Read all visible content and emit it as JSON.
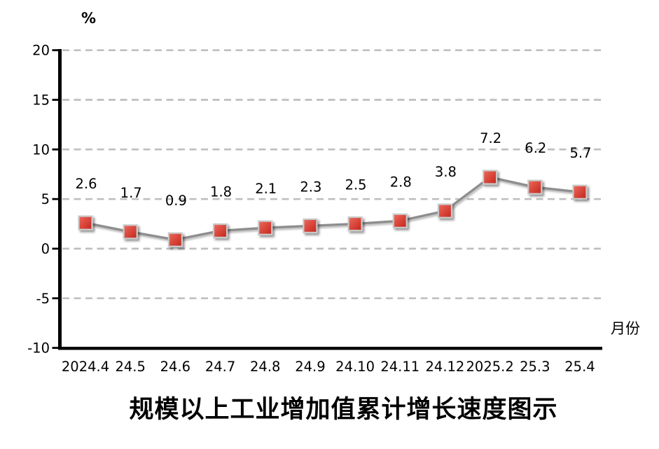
{
  "chart_data": {
    "type": "line",
    "title": "规模以上工业增加值累计增长速度图示",
    "ylabel": "%",
    "xlabel": "月份",
    "categories": [
      "2024.4",
      "24.5",
      "24.6",
      "24.7",
      "24.8",
      "24.9",
      "24.10",
      "24.11",
      "24.12",
      "2025.2",
      "25.3",
      "25.4"
    ],
    "values": [
      2.6,
      1.7,
      0.9,
      1.8,
      2.1,
      2.3,
      2.5,
      2.8,
      3.8,
      7.2,
      6.2,
      5.7
    ],
    "ylim": [
      -10,
      20
    ],
    "yticks": [
      20,
      15,
      10,
      5,
      0,
      -5,
      -10
    ],
    "grid": "horizontal-dashed",
    "legend": "none",
    "marker_shape": "square",
    "colors": {
      "marker_fill_light": "#EE6A5E",
      "marker_fill_dark": "#C4241A",
      "marker_border": "#C9C9C9",
      "line": "#8E8E8E",
      "grid": "#BFBFBF",
      "axis": "#000000",
      "text": "#000000",
      "background": "#FFFFFF"
    }
  }
}
